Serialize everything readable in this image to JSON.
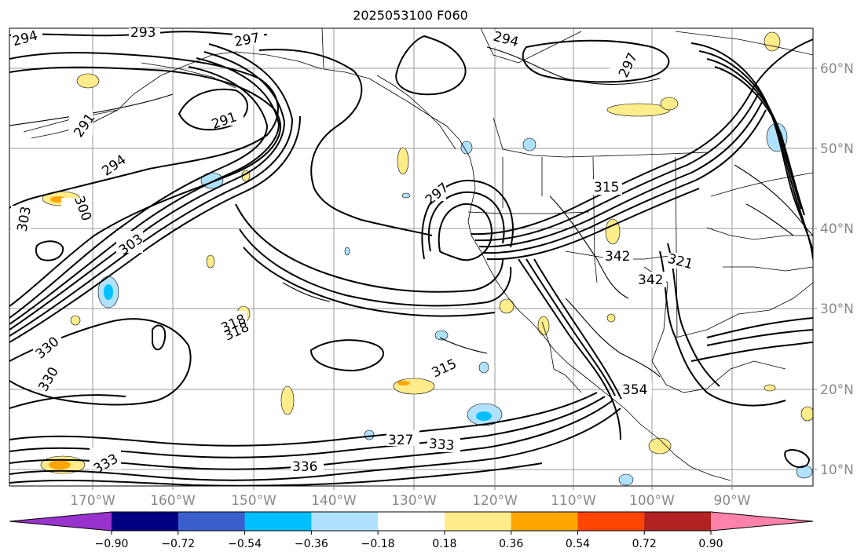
{
  "title": "2025053100 F060",
  "map": {
    "lon_labels": [
      "170°W",
      "160°W",
      "150°W",
      "140°W",
      "130°W",
      "120°W",
      "110°W",
      "100°W",
      "90°W"
    ],
    "lat_labels": [
      "60°N",
      "50°N",
      "40°N",
      "30°N",
      "20°N",
      "10°N"
    ],
    "contour_labels": [
      "294",
      "293",
      "297",
      "294",
      "297",
      "291",
      "291",
      "294",
      "297",
      "303",
      "300",
      "303",
      "318",
      "318",
      "315",
      "330",
      "330",
      "327",
      "333",
      "333",
      "336",
      "342",
      "342",
      "321",
      "354",
      "315"
    ],
    "colors": {
      "line": "#000000",
      "grid": "#999999",
      "coast": "#000000"
    }
  },
  "colorbar": {
    "ticks": [
      "−0.90",
      "−0.72",
      "−0.54",
      "−0.36",
      "−0.18",
      "0.18",
      "0.36",
      "0.54",
      "0.72",
      "0.90"
    ],
    "colors": [
      "#9a32cd",
      "#000080",
      "#3a5fcd",
      "#00bfff",
      "#b0e2ff",
      "#ffffff",
      "#ffec8b",
      "#ffa500",
      "#ff4500",
      "#b22222",
      "#ff82ab"
    ]
  }
}
